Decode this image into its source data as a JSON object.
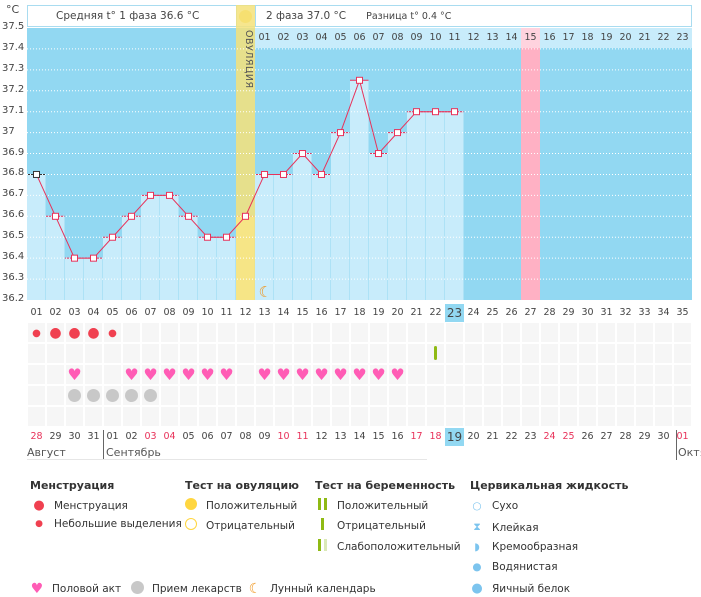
{
  "y_unit": "°C",
  "header": {
    "phase1": "Средняя t° 1 фаза 36.6 °C",
    "phase2": "2 фаза 37.0 °C",
    "diff": "Разница t° 0.4 °C",
    "ovulation_label": "ОВУЛЯЦИЯ"
  },
  "chart_data": {
    "type": "line",
    "ylim": [
      36.2,
      37.5
    ],
    "yticks": [
      "37.5",
      "37.4",
      "37.3",
      "37.2",
      "37.1",
      "37",
      "36.9",
      "36.8",
      "36.7",
      "36.6",
      "36.5",
      "36.4",
      "36.3",
      "36.2"
    ],
    "cycle_days": [
      "01",
      "02",
      "03",
      "04",
      "05",
      "06",
      "07",
      "08",
      "09",
      "10",
      "11",
      "12",
      "13",
      "14",
      "15",
      "16",
      "17",
      "18",
      "19",
      "20",
      "21",
      "22",
      "23",
      "24",
      "25",
      "26",
      "27",
      "28",
      "29",
      "30",
      "31",
      "32",
      "33",
      "34",
      "35"
    ],
    "phase2_days": [
      "01",
      "02",
      "03",
      "04",
      "05",
      "06",
      "07",
      "08",
      "09",
      "10",
      "11",
      "12",
      "13",
      "14",
      "15",
      "16",
      "17",
      "18",
      "19",
      "20",
      "21",
      "22",
      "23"
    ],
    "temperatures": [
      36.8,
      36.6,
      36.4,
      36.4,
      36.5,
      36.6,
      36.7,
      36.7,
      36.6,
      36.5,
      36.5,
      36.6,
      36.8,
      36.8,
      36.9,
      36.8,
      37.0,
      37.25,
      36.9,
      37.0,
      37.1,
      37.1,
      37.1
    ],
    "ovulation_day": 12,
    "current_day": 23,
    "expected_period_day": 27,
    "moon_day": 13,
    "line_color": "#e8325a",
    "grid": true
  },
  "rows": {
    "menstruation": {
      "1": "small",
      "2": "big",
      "3": "big",
      "4": "big",
      "5": "small"
    },
    "pregnancy_test_negative": [
      22
    ],
    "intercourse": [
      3,
      6,
      7,
      8,
      9,
      10,
      11,
      13,
      14,
      15,
      16,
      17,
      18,
      19,
      20
    ],
    "medication": [
      3,
      4,
      5,
      6,
      7
    ]
  },
  "dates": [
    "28",
    "29",
    "30",
    "31",
    "01",
    "02",
    "03",
    "04",
    "05",
    "06",
    "07",
    "08",
    "09",
    "10",
    "11",
    "12",
    "13",
    "14",
    "15",
    "16",
    "17",
    "18",
    "19",
    "20",
    "21",
    "22",
    "23",
    "24",
    "25",
    "26",
    "27",
    "28",
    "29",
    "30",
    "01"
  ],
  "weekend_dates_idx": [
    0,
    6,
    7,
    13,
    14,
    20,
    21,
    27,
    28,
    34
  ],
  "today_idx": 22,
  "months": [
    "Август",
    "Сентябрь",
    "Октя"
  ],
  "legend": {
    "menstruation": {
      "title": "Менструация",
      "items": [
        "Менструация",
        "Небольшие выделения"
      ]
    },
    "ovulation_test": {
      "title": "Тест на овуляцию",
      "items": [
        "Положительный",
        "Отрицательный"
      ]
    },
    "pregnancy_test": {
      "title": "Тест на беременность",
      "items": [
        "Положительный",
        "Отрицательный",
        "Слабоположительный"
      ]
    },
    "cervical": {
      "title": "Цервикальная жидкость",
      "items": [
        "Сухо",
        "Клейкая",
        "Кремообразная",
        "Водянистая",
        "Яичный белок"
      ]
    },
    "other": [
      "Половой акт",
      "Прием лекарств",
      "Лунный календарь"
    ]
  }
}
